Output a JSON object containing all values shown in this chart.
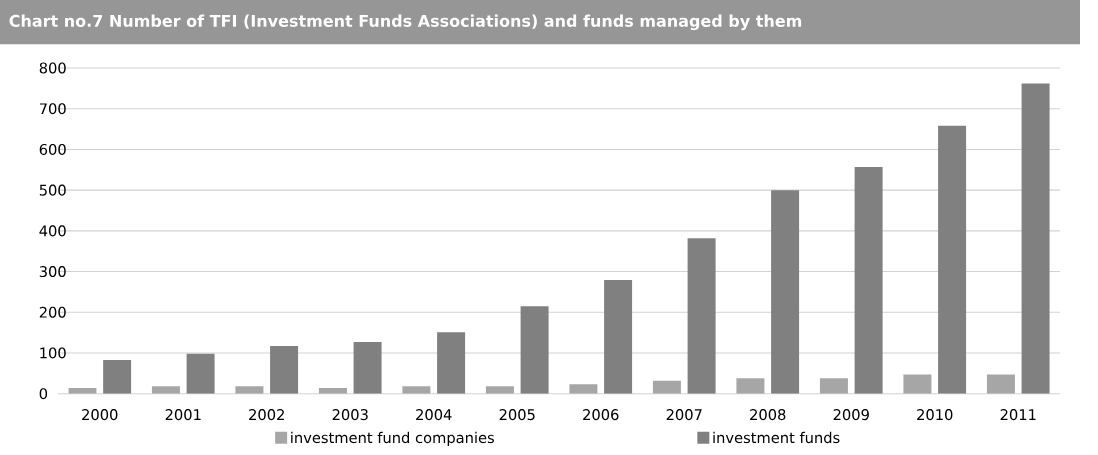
{
  "chart_data": {
    "type": "bar",
    "title": "Chart no.7 Number of TFI (Investment Funds Associations) and funds managed by them",
    "categories": [
      "2000",
      "2001",
      "2002",
      "2003",
      "2004",
      "2005",
      "2006",
      "2007",
      "2008",
      "2009",
      "2010",
      "2011"
    ],
    "series": [
      {
        "name": "investment fund companies",
        "color": "#a6a6a6",
        "values": [
          14,
          18,
          18,
          14,
          18,
          18,
          23,
          32,
          38,
          38,
          47,
          47
        ]
      },
      {
        "name": "investment funds",
        "color": "#808080",
        "values": [
          83,
          98,
          117,
          127,
          151,
          215,
          279,
          382,
          500,
          557,
          658,
          762
        ]
      }
    ],
    "ylim": [
      0,
      800
    ],
    "yticks": [
      0,
      100,
      200,
      300,
      400,
      500,
      600,
      700,
      800
    ],
    "grid": "y",
    "legend": "bottom"
  }
}
